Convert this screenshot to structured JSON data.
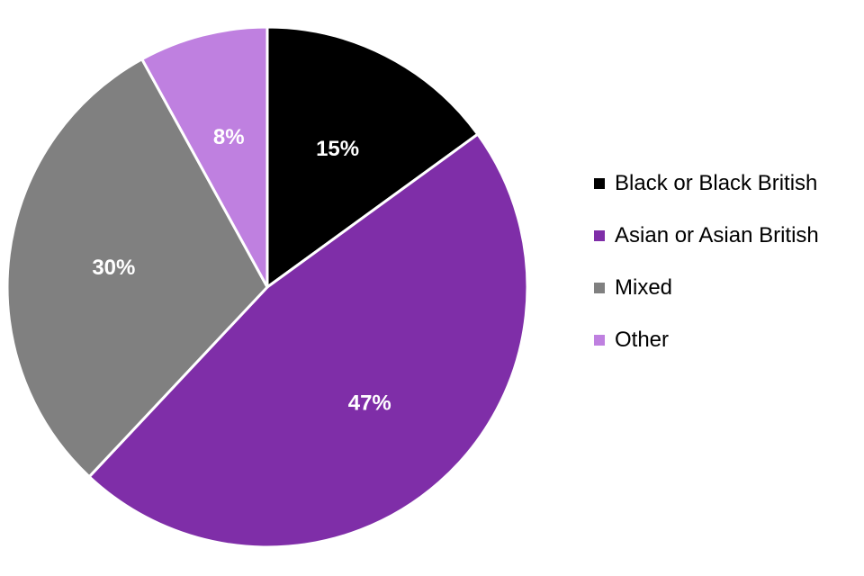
{
  "chart_data": {
    "type": "pie",
    "title": "",
    "categories": [
      "Black or Black British",
      "Asian or Asian British",
      "Mixed",
      "Other"
    ],
    "values": [
      15,
      47,
      30,
      8
    ],
    "value_labels": [
      "15%",
      "47%",
      "30%",
      "8%"
    ],
    "colors": [
      "#000000",
      "#7f2ea8",
      "#808080",
      "#bf80e0"
    ],
    "legend_position": "right",
    "start_angle": "top",
    "direction": "clockwise"
  }
}
